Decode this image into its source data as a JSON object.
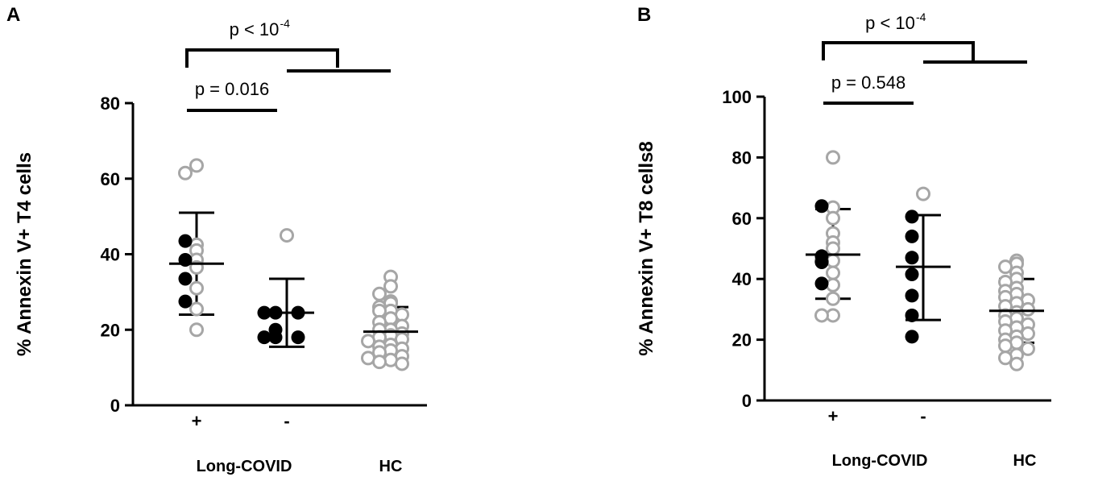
{
  "chart_data": [
    {
      "panel": "A",
      "type": "scatter",
      "ylabel": "% Annexin V+ T4 cells",
      "ylim": [
        0,
        80
      ],
      "yticks": [
        0,
        20,
        40,
        60,
        80
      ],
      "categories": [
        "+",
        "-",
        ""
      ],
      "group_labels": [
        {
          "text": "Long-COVID",
          "spans": [
            0,
            1
          ]
        },
        {
          "text": "HC",
          "spans": [
            2,
            2
          ]
        }
      ],
      "groups": [
        {
          "category": "+",
          "points_filled": [
            43.5,
            38.5,
            33.5,
            27.5
          ],
          "points_open": [
            63.5,
            61.5,
            42.5,
            41,
            38.5,
            36.5,
            31,
            25.5,
            20
          ],
          "mean": 37.5,
          "sd_low": 24,
          "sd_high": 51
        },
        {
          "category": "-",
          "points_filled": [
            24.5,
            24.5,
            24.5,
            20,
            18,
            18,
            18
          ],
          "points_open": [
            45
          ],
          "mean": 24.5,
          "sd_low": 15.5,
          "sd_high": 33.5
        },
        {
          "category": "",
          "points_filled": [],
          "points_open": [
            34,
            31.5,
            29.5,
            27.5,
            27,
            26,
            25,
            25,
            24,
            23,
            22,
            21,
            20,
            20,
            19,
            18.5,
            18,
            17.5,
            17,
            16,
            15.5,
            15,
            14.5,
            14,
            13,
            12.5,
            12,
            11.5,
            11
          ],
          "mean": 19.5,
          "sd_low": 13.5,
          "sd_high": 26
        }
      ],
      "comparisons": [
        {
          "text": "p = 0.016",
          "superscript": "",
          "from": 0,
          "to": 1
        },
        {
          "text": "p < 10",
          "superscript": "-4",
          "from": 0,
          "to": 2
        }
      ]
    },
    {
      "panel": "B",
      "type": "scatter",
      "ylabel": "% Annexin V+ T8 cells8",
      "ylim": [
        0,
        100
      ],
      "yticks": [
        0,
        20,
        40,
        60,
        80,
        100
      ],
      "categories": [
        "+",
        "-",
        ""
      ],
      "group_labels": [
        {
          "text": "Long-COVID",
          "spans": [
            0,
            1
          ]
        },
        {
          "text": "HC",
          "spans": [
            2,
            2
          ]
        }
      ],
      "groups": [
        {
          "category": "+",
          "points_filled": [
            64,
            47.5,
            45.5,
            38.5
          ],
          "points_open": [
            80,
            63.5,
            60,
            55,
            52,
            50,
            46,
            46,
            42,
            38,
            33.5,
            28,
            28
          ],
          "mean": 48,
          "sd_low": 33.5,
          "sd_high": 63
        },
        {
          "category": "-",
          "points_filled": [
            60.5,
            54,
            47,
            41.5,
            34.5,
            28,
            21
          ],
          "points_open": [
            68
          ],
          "mean": 44,
          "sd_low": 26.5,
          "sd_high": 61
        },
        {
          "category": "",
          "points_filled": [],
          "points_open": [
            46,
            45,
            44,
            42,
            40,
            39,
            37,
            36,
            35,
            34,
            33,
            32,
            31,
            30,
            29,
            28,
            27,
            26,
            25,
            24,
            23,
            22,
            21,
            20,
            19,
            18,
            17,
            15,
            14,
            12
          ],
          "mean": 29.5,
          "sd_low": 19,
          "sd_high": 40
        }
      ],
      "comparisons": [
        {
          "text": "p = 0.548",
          "superscript": "",
          "from": 0,
          "to": 1
        },
        {
          "text": "p < 10",
          "superscript": "-4",
          "from": 0,
          "to": 2
        }
      ]
    }
  ],
  "colors": {
    "filled_point": "#000000",
    "open_point": "#a6a6a6",
    "axis": "#000000"
  }
}
